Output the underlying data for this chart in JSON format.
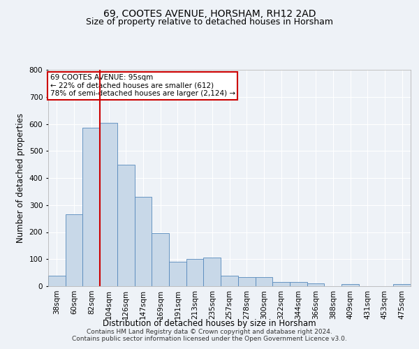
{
  "title1": "69, COOTES AVENUE, HORSHAM, RH12 2AD",
  "title2": "Size of property relative to detached houses in Horsham",
  "xlabel": "Distribution of detached houses by size in Horsham",
  "ylabel": "Number of detached properties",
  "categories": [
    "38sqm",
    "60sqm",
    "82sqm",
    "104sqm",
    "126sqm",
    "147sqm",
    "169sqm",
    "191sqm",
    "213sqm",
    "235sqm",
    "257sqm",
    "278sqm",
    "300sqm",
    "322sqm",
    "344sqm",
    "366sqm",
    "388sqm",
    "409sqm",
    "431sqm",
    "453sqm",
    "475sqm"
  ],
  "values": [
    38,
    265,
    585,
    605,
    450,
    330,
    196,
    90,
    100,
    105,
    38,
    33,
    33,
    15,
    15,
    10,
    0,
    8,
    0,
    0,
    8
  ],
  "bar_color": "#c8d8e8",
  "bar_edge_color": "#5588bb",
  "vline_x_index": 3,
  "vline_color": "#cc0000",
  "annotation_text": "69 COOTES AVENUE: 95sqm\n← 22% of detached houses are smaller (612)\n78% of semi-detached houses are larger (2,124) →",
  "annotation_box_color": "#ffffff",
  "annotation_box_edge": "#cc0000",
  "footer": "Contains HM Land Registry data © Crown copyright and database right 2024.\nContains public sector information licensed under the Open Government Licence v3.0.",
  "ylim": [
    0,
    800
  ],
  "yticks": [
    0,
    100,
    200,
    300,
    400,
    500,
    600,
    700,
    800
  ],
  "background_color": "#eef2f7",
  "grid_color": "#ffffff",
  "title1_fontsize": 10,
  "title2_fontsize": 9,
  "axis_label_fontsize": 8.5,
  "tick_fontsize": 7.5,
  "footer_fontsize": 6.5
}
